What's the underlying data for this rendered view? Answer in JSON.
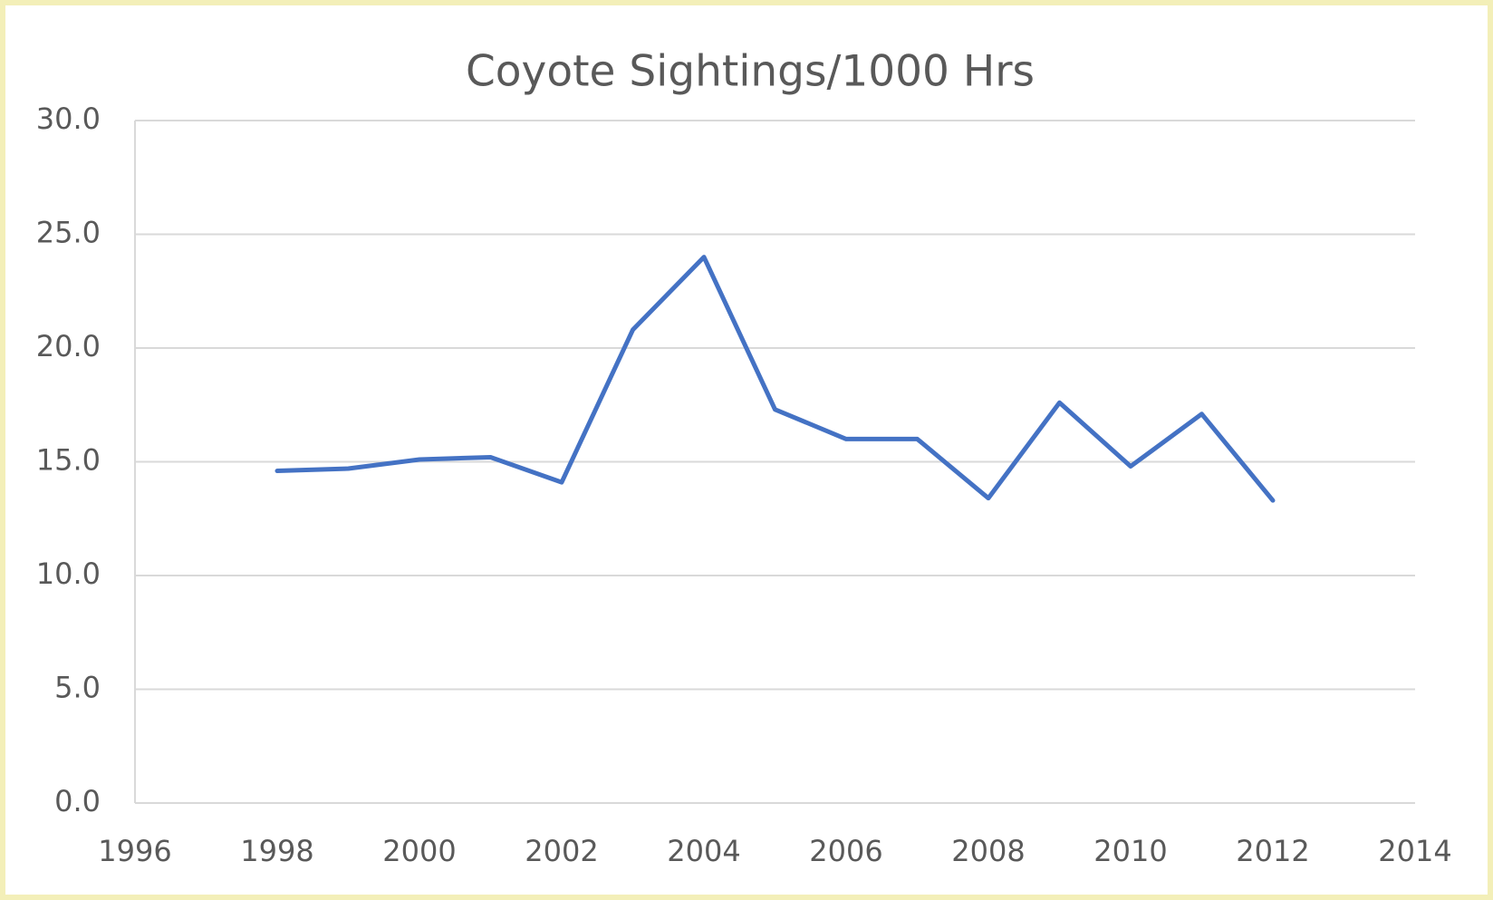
{
  "chart_data": {
    "type": "line",
    "title": "Coyote Sightings/1000 Hrs",
    "x": [
      1998,
      1999,
      2000,
      2001,
      2002,
      2003,
      2004,
      2005,
      2006,
      2007,
      2008,
      2009,
      2010,
      2011,
      2012
    ],
    "series": [
      {
        "name": "Coyote Sightings/1000 Hrs",
        "color": "#4472c4",
        "values": [
          14.6,
          14.7,
          15.1,
          15.2,
          14.1,
          20.8,
          24.0,
          17.3,
          16.0,
          16.0,
          13.4,
          17.6,
          14.8,
          17.1,
          13.3
        ]
      }
    ],
    "xlim": [
      1996,
      2014
    ],
    "xticks": [
      1996,
      1998,
      2000,
      2002,
      2004,
      2006,
      2008,
      2010,
      2012,
      2014
    ],
    "ylim": [
      0,
      30
    ],
    "yticks": [
      {
        "value": 0,
        "label": "0.0"
      },
      {
        "value": 5,
        "label": "5.0"
      },
      {
        "value": 10,
        "label": "10.0"
      },
      {
        "value": 15,
        "label": "15.0"
      },
      {
        "value": 20,
        "label": "20.0"
      },
      {
        "value": 25,
        "label": "25.0"
      },
      {
        "value": 30,
        "label": "30.0"
      }
    ],
    "grid": true
  }
}
